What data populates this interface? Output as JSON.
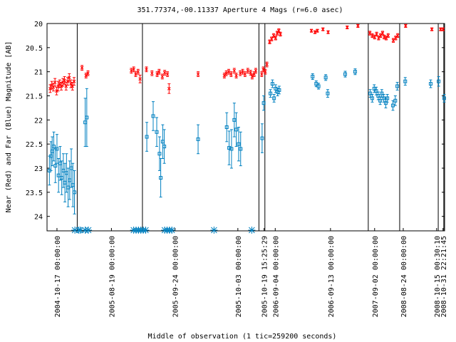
{
  "chart_data": {
    "type": "scatter",
    "title": "351.77374,-00.11337   Aperture 4 Mags (r=6.0 asec)",
    "xlabel": "Middle of observation (1 tic=259200 seconds)",
    "ylabel": "Near (Red) and Far (Blue) Magnitude [AB]",
    "ylim": [
      24.3,
      20.0
    ],
    "y_inverted": true,
    "y_ticks": [
      20,
      20.5,
      21,
      21.5,
      22,
      22.5,
      23,
      23.5,
      24
    ],
    "y_tick_labels": [
      "20",
      "20.5",
      "21",
      "21.5",
      "22",
      "22.5",
      "23",
      "23.5",
      "24"
    ],
    "xlim": [
      0,
      100
    ],
    "x_ticks": [
      {
        "x": 2.5,
        "label": "2004-10-17 00:00:00"
      },
      {
        "x": 16.2,
        "label": "2005-08-19 00:00:00"
      },
      {
        "x": 32.2,
        "label": "2005-09-24 00:00:00"
      },
      {
        "x": 48.0,
        "label": "2005-10-03 00:00:00"
      },
      {
        "x": 54.6,
        "label": "2005-10-19 15:25:29"
      },
      {
        "x": 57.4,
        "label": "2006-09-04 00:00:00"
      },
      {
        "x": 71.3,
        "label": "2006-09-13 00:00:00"
      },
      {
        "x": 82.4,
        "label": "2007-09-02 00:00:00"
      },
      {
        "x": 89.6,
        "label": "2008-08-24 00:00:00"
      },
      {
        "x": 98.0,
        "label": "2008-10-15 00:30:10"
      },
      {
        "x": 99.6,
        "label": "2008-10-31 22:21:45"
      }
    ],
    "segment_dividers": [
      7.6,
      24.0,
      53.3,
      54.8,
      80.8,
      88.7,
      98.4,
      99.8
    ],
    "grid": false,
    "legend": "none",
    "colors": {
      "near": "#ff0000",
      "far": "#0080c0",
      "axis": "#000000"
    },
    "series": [
      {
        "name": "Near",
        "color": "#ff0000",
        "points": [
          {
            "x": 0.8,
            "y": 21.35,
            "e": 0.08
          },
          {
            "x": 1.2,
            "y": 21.28,
            "e": 0.08
          },
          {
            "x": 1.6,
            "y": 21.32,
            "e": 0.08
          },
          {
            "x": 2.0,
            "y": 21.22,
            "e": 0.08
          },
          {
            "x": 2.4,
            "y": 21.4,
            "e": 0.08
          },
          {
            "x": 2.8,
            "y": 21.3,
            "e": 0.1
          },
          {
            "x": 3.2,
            "y": 21.25,
            "e": 0.08
          },
          {
            "x": 3.6,
            "y": 21.3,
            "e": 0.08
          },
          {
            "x": 4.0,
            "y": 21.22,
            "e": 0.08
          },
          {
            "x": 4.4,
            "y": 21.18,
            "e": 0.08
          },
          {
            "x": 4.8,
            "y": 21.3,
            "e": 0.08
          },
          {
            "x": 5.2,
            "y": 21.2,
            "e": 0.08
          },
          {
            "x": 5.6,
            "y": 21.12,
            "e": 0.08
          },
          {
            "x": 6.0,
            "y": 21.25,
            "e": 0.08
          },
          {
            "x": 6.4,
            "y": 21.3,
            "e": 0.08
          },
          {
            "x": 6.8,
            "y": 21.2,
            "e": 0.08
          },
          {
            "x": 8.8,
            "y": 20.92,
            "e": 0.05
          },
          {
            "x": 9.8,
            "y": 21.08,
            "e": 0.05
          },
          {
            "x": 10.3,
            "y": 21.03,
            "e": 0.05
          },
          {
            "x": 21.2,
            "y": 20.98,
            "e": 0.05
          },
          {
            "x": 21.8,
            "y": 20.95,
            "e": 0.05
          },
          {
            "x": 22.3,
            "y": 21.05,
            "e": 0.05
          },
          {
            "x": 22.9,
            "y": 21.0,
            "e": 0.05
          },
          {
            "x": 23.4,
            "y": 21.15,
            "e": 0.08
          },
          {
            "x": 25.0,
            "y": 20.95,
            "e": 0.05
          },
          {
            "x": 26.4,
            "y": 21.03,
            "e": 0.05
          },
          {
            "x": 27.7,
            "y": 21.05,
            "e": 0.05
          },
          {
            "x": 28.2,
            "y": 21.0,
            "e": 0.05
          },
          {
            "x": 29.0,
            "y": 21.1,
            "e": 0.05
          },
          {
            "x": 29.6,
            "y": 21.02,
            "e": 0.05
          },
          {
            "x": 30.3,
            "y": 21.05,
            "e": 0.05
          },
          {
            "x": 30.7,
            "y": 21.35,
            "e": 0.1
          },
          {
            "x": 38.0,
            "y": 21.05,
            "e": 0.05
          },
          {
            "x": 44.6,
            "y": 21.08,
            "e": 0.05
          },
          {
            "x": 45.1,
            "y": 21.03,
            "e": 0.05
          },
          {
            "x": 45.7,
            "y": 21.0,
            "e": 0.05
          },
          {
            "x": 46.3,
            "y": 21.05,
            "e": 0.05
          },
          {
            "x": 47.1,
            "y": 20.98,
            "e": 0.05
          },
          {
            "x": 47.6,
            "y": 21.08,
            "e": 0.05
          },
          {
            "x": 48.6,
            "y": 21.03,
            "e": 0.05
          },
          {
            "x": 49.2,
            "y": 21.0,
            "e": 0.05
          },
          {
            "x": 49.8,
            "y": 21.05,
            "e": 0.05
          },
          {
            "x": 50.5,
            "y": 20.98,
            "e": 0.05
          },
          {
            "x": 51.2,
            "y": 21.02,
            "e": 0.05
          },
          {
            "x": 51.6,
            "y": 21.1,
            "e": 0.05
          },
          {
            "x": 52.1,
            "y": 21.05,
            "e": 0.05
          },
          {
            "x": 52.5,
            "y": 20.98,
            "e": 0.05
          },
          {
            "x": 54.0,
            "y": 21.05,
            "e": 0.05
          },
          {
            "x": 54.4,
            "y": 20.95,
            "e": 0.05
          },
          {
            "x": 54.9,
            "y": 21.0,
            "e": 0.05
          },
          {
            "x": 55.3,
            "y": 20.85,
            "e": 0.05
          },
          {
            "x": 56.0,
            "y": 20.38,
            "e": 0.04
          },
          {
            "x": 56.5,
            "y": 20.32,
            "e": 0.04
          },
          {
            "x": 57.0,
            "y": 20.25,
            "e": 0.04
          },
          {
            "x": 57.5,
            "y": 20.3,
            "e": 0.04
          },
          {
            "x": 57.9,
            "y": 20.2,
            "e": 0.04
          },
          {
            "x": 58.3,
            "y": 20.15,
            "e": 0.04
          },
          {
            "x": 58.7,
            "y": 20.22,
            "e": 0.04
          },
          {
            "x": 66.5,
            "y": 20.15,
            "e": 0.03
          },
          {
            "x": 67.4,
            "y": 20.18,
            "e": 0.03
          },
          {
            "x": 68.0,
            "y": 20.15,
            "e": 0.03
          },
          {
            "x": 69.4,
            "y": 20.12,
            "e": 0.03
          },
          {
            "x": 70.7,
            "y": 20.18,
            "e": 0.03
          },
          {
            "x": 75.5,
            "y": 20.08,
            "e": 0.03
          },
          {
            "x": 78.2,
            "y": 20.05,
            "e": 0.03
          },
          {
            "x": 81.2,
            "y": 20.2,
            "e": 0.04
          },
          {
            "x": 81.8,
            "y": 20.25,
            "e": 0.04
          },
          {
            "x": 82.4,
            "y": 20.28,
            "e": 0.04
          },
          {
            "x": 82.9,
            "y": 20.22,
            "e": 0.04
          },
          {
            "x": 83.4,
            "y": 20.3,
            "e": 0.04
          },
          {
            "x": 83.9,
            "y": 20.25,
            "e": 0.04
          },
          {
            "x": 84.4,
            "y": 20.2,
            "e": 0.04
          },
          {
            "x": 84.8,
            "y": 20.28,
            "e": 0.04
          },
          {
            "x": 85.3,
            "y": 20.3,
            "e": 0.04
          },
          {
            "x": 85.8,
            "y": 20.25,
            "e": 0.04
          },
          {
            "x": 87.1,
            "y": 20.35,
            "e": 0.04
          },
          {
            "x": 87.7,
            "y": 20.3,
            "e": 0.04
          },
          {
            "x": 88.2,
            "y": 20.25,
            "e": 0.04
          },
          {
            "x": 90.2,
            "y": 20.05,
            "e": 0.03
          },
          {
            "x": 96.8,
            "y": 20.12,
            "e": 0.03
          },
          {
            "x": 99.0,
            "y": 20.12,
            "e": 0.03
          },
          {
            "x": 99.6,
            "y": 20.12,
            "e": 0.03
          }
        ]
      },
      {
        "name": "Far",
        "color": "#0080c0",
        "points": [
          {
            "x": 0.6,
            "y": 23.05,
            "e": 0.3
          },
          {
            "x": 1.0,
            "y": 22.75,
            "e": 0.3
          },
          {
            "x": 1.3,
            "y": 22.65,
            "e": 0.3
          },
          {
            "x": 1.7,
            "y": 22.55,
            "e": 0.3
          },
          {
            "x": 2.1,
            "y": 22.95,
            "e": 0.35
          },
          {
            "x": 2.5,
            "y": 22.6,
            "e": 0.3
          },
          {
            "x": 2.9,
            "y": 23.15,
            "e": 0.35
          },
          {
            "x": 3.3,
            "y": 22.9,
            "e": 0.35
          },
          {
            "x": 3.7,
            "y": 23.2,
            "e": 0.35
          },
          {
            "x": 4.1,
            "y": 23.05,
            "e": 0.35
          },
          {
            "x": 4.5,
            "y": 23.3,
            "e": 0.4
          },
          {
            "x": 4.9,
            "y": 23.1,
            "e": 0.4
          },
          {
            "x": 5.3,
            "y": 23.4,
            "e": 0.4
          },
          {
            "x": 5.7,
            "y": 23.25,
            "e": 0.4
          },
          {
            "x": 6.1,
            "y": 23.0,
            "e": 0.4
          },
          {
            "x": 6.5,
            "y": 23.35,
            "e": 0.45
          },
          {
            "x": 6.9,
            "y": 23.5,
            "e": 0.45
          },
          {
            "x": 9.6,
            "y": 22.05,
            "e": 0.5
          },
          {
            "x": 10.0,
            "y": 21.95,
            "e": 0.6
          },
          {
            "x": 25.1,
            "y": 22.35,
            "e": 0.3
          },
          {
            "x": 26.7,
            "y": 21.92,
            "e": 0.3
          },
          {
            "x": 27.6,
            "y": 22.25,
            "e": 0.3
          },
          {
            "x": 28.3,
            "y": 22.7,
            "e": 0.35
          },
          {
            "x": 28.6,
            "y": 23.2,
            "e": 0.4
          },
          {
            "x": 29.1,
            "y": 22.45,
            "e": 0.35
          },
          {
            "x": 29.5,
            "y": 22.55,
            "e": 0.35
          },
          {
            "x": 38.0,
            "y": 22.4,
            "e": 0.3
          },
          {
            "x": 45.2,
            "y": 22.15,
            "e": 0.3
          },
          {
            "x": 45.8,
            "y": 22.58,
            "e": 0.35
          },
          {
            "x": 46.4,
            "y": 22.6,
            "e": 0.4
          },
          {
            "x": 47.1,
            "y": 22.0,
            "e": 0.35
          },
          {
            "x": 47.6,
            "y": 22.2,
            "e": 0.35
          },
          {
            "x": 48.2,
            "y": 22.5,
            "e": 0.35
          },
          {
            "x": 48.7,
            "y": 22.6,
            "e": 0.35
          },
          {
            "x": 54.1,
            "y": 22.38,
            "e": 0.3
          },
          {
            "x": 54.5,
            "y": 21.65,
            "e": 0.15
          },
          {
            "x": 56.2,
            "y": 21.45,
            "e": 0.08
          },
          {
            "x": 56.7,
            "y": 21.25,
            "e": 0.08
          },
          {
            "x": 57.1,
            "y": 21.55,
            "e": 0.08
          },
          {
            "x": 57.5,
            "y": 21.35,
            "e": 0.08
          },
          {
            "x": 58.0,
            "y": 21.42,
            "e": 0.08
          },
          {
            "x": 58.4,
            "y": 21.38,
            "e": 0.08
          },
          {
            "x": 66.8,
            "y": 21.1,
            "e": 0.06
          },
          {
            "x": 67.7,
            "y": 21.25,
            "e": 0.06
          },
          {
            "x": 68.3,
            "y": 21.3,
            "e": 0.06
          },
          {
            "x": 70.1,
            "y": 21.12,
            "e": 0.06
          },
          {
            "x": 70.6,
            "y": 21.45,
            "e": 0.08
          },
          {
            "x": 75.0,
            "y": 21.05,
            "e": 0.06
          },
          {
            "x": 77.5,
            "y": 21.0,
            "e": 0.06
          },
          {
            "x": 81.3,
            "y": 21.45,
            "e": 0.08
          },
          {
            "x": 81.8,
            "y": 21.55,
            "e": 0.08
          },
          {
            "x": 82.3,
            "y": 21.35,
            "e": 0.08
          },
          {
            "x": 82.8,
            "y": 21.4,
            "e": 0.08
          },
          {
            "x": 83.3,
            "y": 21.5,
            "e": 0.08
          },
          {
            "x": 83.8,
            "y": 21.6,
            "e": 0.08
          },
          {
            "x": 84.2,
            "y": 21.45,
            "e": 0.08
          },
          {
            "x": 84.7,
            "y": 21.55,
            "e": 0.08
          },
          {
            "x": 85.2,
            "y": 21.65,
            "e": 0.1
          },
          {
            "x": 85.6,
            "y": 21.55,
            "e": 0.08
          },
          {
            "x": 87.0,
            "y": 21.7,
            "e": 0.1
          },
          {
            "x": 87.6,
            "y": 21.6,
            "e": 0.1
          },
          {
            "x": 88.1,
            "y": 21.3,
            "e": 0.08
          },
          {
            "x": 90.1,
            "y": 21.2,
            "e": 0.08
          },
          {
            "x": 96.5,
            "y": 21.25,
            "e": 0.08
          },
          {
            "x": 98.5,
            "y": 21.2,
            "e": 0.1
          },
          {
            "x": 99.9,
            "y": 21.55,
            "e": 0.08
          }
        ]
      },
      {
        "name": "Upper limits",
        "color": "#0080c0",
        "marker": "asterisk",
        "y": 24.3,
        "x": [
          7.0,
          8.0,
          8.4,
          9.6,
          10.4,
          21.8,
          22.4,
          23.0,
          23.6,
          24.2,
          24.8,
          29.6,
          30.2,
          30.8,
          31.4,
          42.0,
          51.5
        ]
      }
    ]
  }
}
